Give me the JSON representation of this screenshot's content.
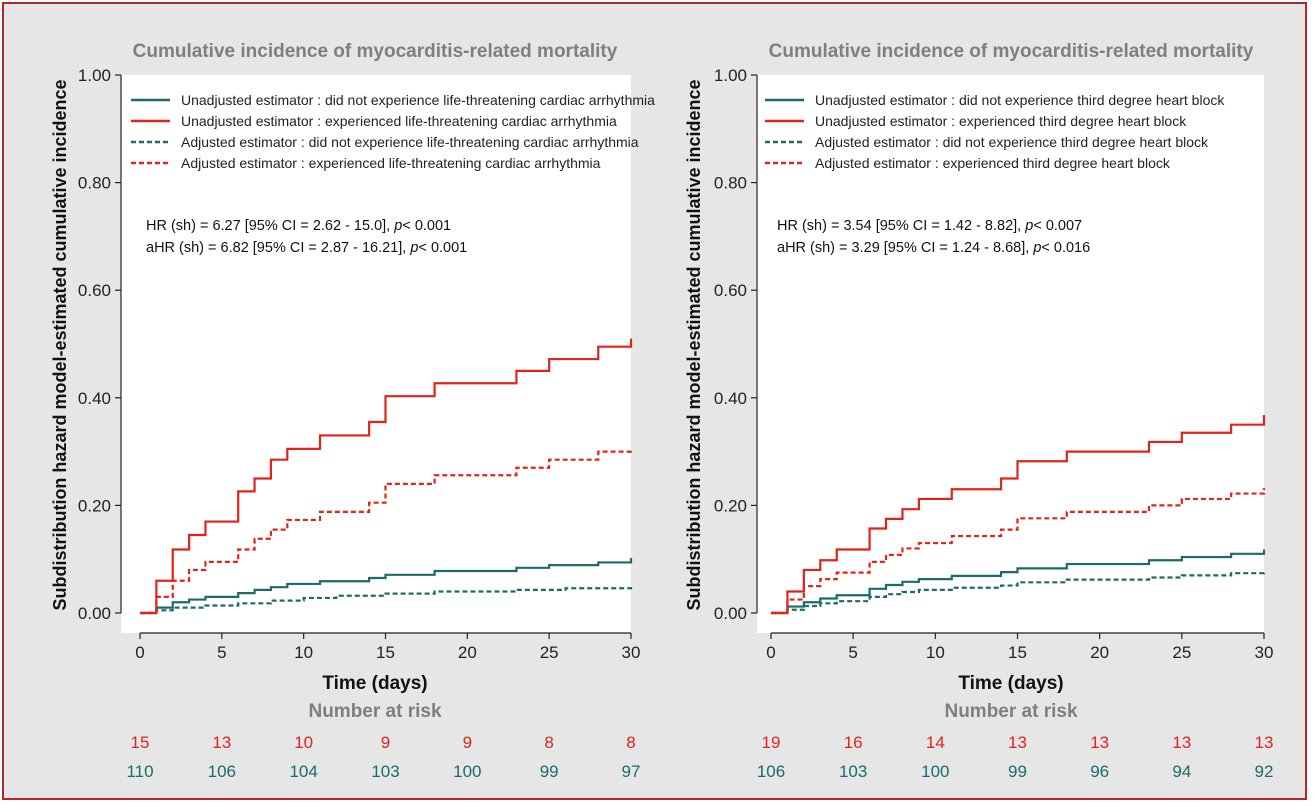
{
  "colors": {
    "red": "#e2231a",
    "green": "#1a6b6a",
    "grey_title": "#7f7f7f",
    "frame_border": "#b3262b",
    "frame_bg": "#e6e6e7"
  },
  "chart_data": [
    {
      "type": "line",
      "title": "Cumulative incidence of myocarditis-related mortality",
      "xlabel": "Time (days)",
      "ylabel": "Subdistribution hazard model-estimated cumulative incidence",
      "xlim": [
        0,
        30
      ],
      "ylim": [
        0,
        1
      ],
      "xticks": [
        "0",
        "5",
        "10",
        "15",
        "20",
        "25",
        "30"
      ],
      "yticks": [
        "0.00",
        "0.20",
        "0.40",
        "0.60",
        "0.80",
        "1.00"
      ],
      "grid": false,
      "legend_position": "top-left",
      "series": [
        {
          "name": "Unadjusted estimator : did not experience life-threatening cardiac arrhythmia",
          "color": "#1a6b6a",
          "style": "solid",
          "x": [
            0,
            1,
            2,
            3,
            4,
            6,
            7,
            8,
            9,
            11,
            14,
            15,
            18,
            23,
            25,
            28,
            30
          ],
          "y": [
            0,
            0.01,
            0.02,
            0.025,
            0.03,
            0.037,
            0.043,
            0.048,
            0.054,
            0.059,
            0.065,
            0.071,
            0.078,
            0.084,
            0.089,
            0.094,
            0.102
          ]
        },
        {
          "name": "Unadjusted estimator : experienced life-threatening cardiac arrhythmia",
          "color": "#e2231a",
          "style": "solid",
          "x": [
            0,
            1,
            2,
            3,
            4,
            6,
            7,
            8,
            9,
            11,
            14,
            15,
            18,
            23,
            25,
            28,
            30
          ],
          "y": [
            0,
            0.06,
            0.118,
            0.145,
            0.17,
            0.226,
            0.25,
            0.285,
            0.305,
            0.33,
            0.355,
            0.403,
            0.427,
            0.45,
            0.472,
            0.495,
            0.51
          ]
        },
        {
          "name": "Adjusted estimator : did not experience life-threatening cardiac arrhythmia",
          "color": "#1a6b6a",
          "style": "dashed",
          "x": [
            0,
            1,
            2,
            4,
            6,
            8,
            10,
            12,
            15,
            18,
            23,
            26,
            30
          ],
          "y": [
            0,
            0.005,
            0.01,
            0.014,
            0.018,
            0.023,
            0.028,
            0.032,
            0.036,
            0.04,
            0.043,
            0.046,
            0.05
          ]
        },
        {
          "name": "Adjusted estimator : experienced life-threatening cardiac arrhythmia",
          "color": "#e2231a",
          "style": "dashed",
          "x": [
            0,
            1,
            2,
            3,
            4,
            6,
            7,
            8,
            9,
            11,
            14,
            15,
            18,
            23,
            25,
            28,
            30
          ],
          "y": [
            0,
            0.03,
            0.06,
            0.08,
            0.095,
            0.118,
            0.138,
            0.155,
            0.173,
            0.188,
            0.205,
            0.24,
            0.256,
            0.27,
            0.285,
            0.3,
            0.305
          ]
        }
      ],
      "annotations": {
        "hr_line": {
          "prefix": "HR (sh) = 6.27 [95% CI = 2.62 - 15.0], ",
          "p": "p",
          "suffix": "< 0.001"
        },
        "ahr_line": {
          "prefix": "aHR (sh) = 6.82 [95% CI = 2.87 - 16.21], ",
          "p": "p",
          "suffix": "< 0.001"
        }
      },
      "number_at_risk": {
        "title": "Number at risk",
        "red": [
          "15",
          "13",
          "10",
          "9",
          "9",
          "8",
          "8"
        ],
        "green": [
          "110",
          "106",
          "104",
          "103",
          "100",
          "99",
          "97"
        ]
      }
    },
    {
      "type": "line",
      "title": "Cumulative incidence of myocarditis-related mortality",
      "xlabel": "Time (days)",
      "ylabel": "Subdistribution hazard model-estimated cumulative incidence",
      "xlim": [
        0,
        30
      ],
      "ylim": [
        0,
        1
      ],
      "xticks": [
        "0",
        "5",
        "10",
        "15",
        "20",
        "25",
        "30"
      ],
      "yticks": [
        "0.00",
        "0.20",
        "0.40",
        "0.60",
        "0.80",
        "1.00"
      ],
      "grid": false,
      "legend_position": "top-left",
      "series": [
        {
          "name": "Unadjusted estimator : did not experience third degree heart block",
          "color": "#1a6b6a",
          "style": "solid",
          "x": [
            0,
            1,
            2,
            3,
            4,
            6,
            7,
            8,
            9,
            11,
            14,
            15,
            18,
            23,
            25,
            28,
            30
          ],
          "y": [
            0,
            0.012,
            0.02,
            0.027,
            0.033,
            0.045,
            0.052,
            0.058,
            0.063,
            0.069,
            0.076,
            0.083,
            0.091,
            0.098,
            0.104,
            0.11,
            0.118
          ]
        },
        {
          "name": "Unadjusted estimator : experienced third degree heart block",
          "color": "#e2231a",
          "style": "solid",
          "x": [
            0,
            1,
            2,
            3,
            4,
            6,
            7,
            8,
            9,
            11,
            14,
            15,
            18,
            23,
            25,
            28,
            30
          ],
          "y": [
            0,
            0.04,
            0.08,
            0.098,
            0.118,
            0.157,
            0.175,
            0.193,
            0.212,
            0.23,
            0.25,
            0.282,
            0.3,
            0.318,
            0.335,
            0.35,
            0.368
          ]
        },
        {
          "name": "Adjusted estimator : did not experience third degree heart block",
          "color": "#1a6b6a",
          "style": "dashed",
          "x": [
            0,
            1,
            2,
            3,
            4,
            6,
            7,
            8,
            9,
            11,
            14,
            15,
            18,
            23,
            25,
            28,
            30
          ],
          "y": [
            0,
            0.006,
            0.013,
            0.018,
            0.022,
            0.03,
            0.035,
            0.039,
            0.043,
            0.047,
            0.051,
            0.057,
            0.062,
            0.066,
            0.07,
            0.074,
            0.078
          ]
        },
        {
          "name": "Adjusted estimator : experienced third degree heart block",
          "color": "#e2231a",
          "style": "dashed",
          "x": [
            0,
            1,
            2,
            3,
            4,
            6,
            7,
            8,
            9,
            11,
            14,
            15,
            18,
            23,
            25,
            28,
            30
          ],
          "y": [
            0,
            0.025,
            0.05,
            0.063,
            0.075,
            0.095,
            0.108,
            0.12,
            0.13,
            0.143,
            0.155,
            0.176,
            0.188,
            0.2,
            0.212,
            0.222,
            0.232
          ]
        }
      ],
      "annotations": {
        "hr_line": {
          "prefix": "HR (sh) = 3.54 [95% CI = 1.42 - 8.82], ",
          "p": "p",
          "suffix": "< 0.007"
        },
        "ahr_line": {
          "prefix": "aHR (sh) = 3.29 [95% CI = 1.24 - 8.68], ",
          "p": "p",
          "suffix": "< 0.016"
        }
      },
      "number_at_risk": {
        "title": "Number at risk",
        "red": [
          "19",
          "16",
          "14",
          "13",
          "13",
          "13",
          "13"
        ],
        "green": [
          "106",
          "103",
          "100",
          "99",
          "96",
          "94",
          "92"
        ]
      }
    }
  ]
}
